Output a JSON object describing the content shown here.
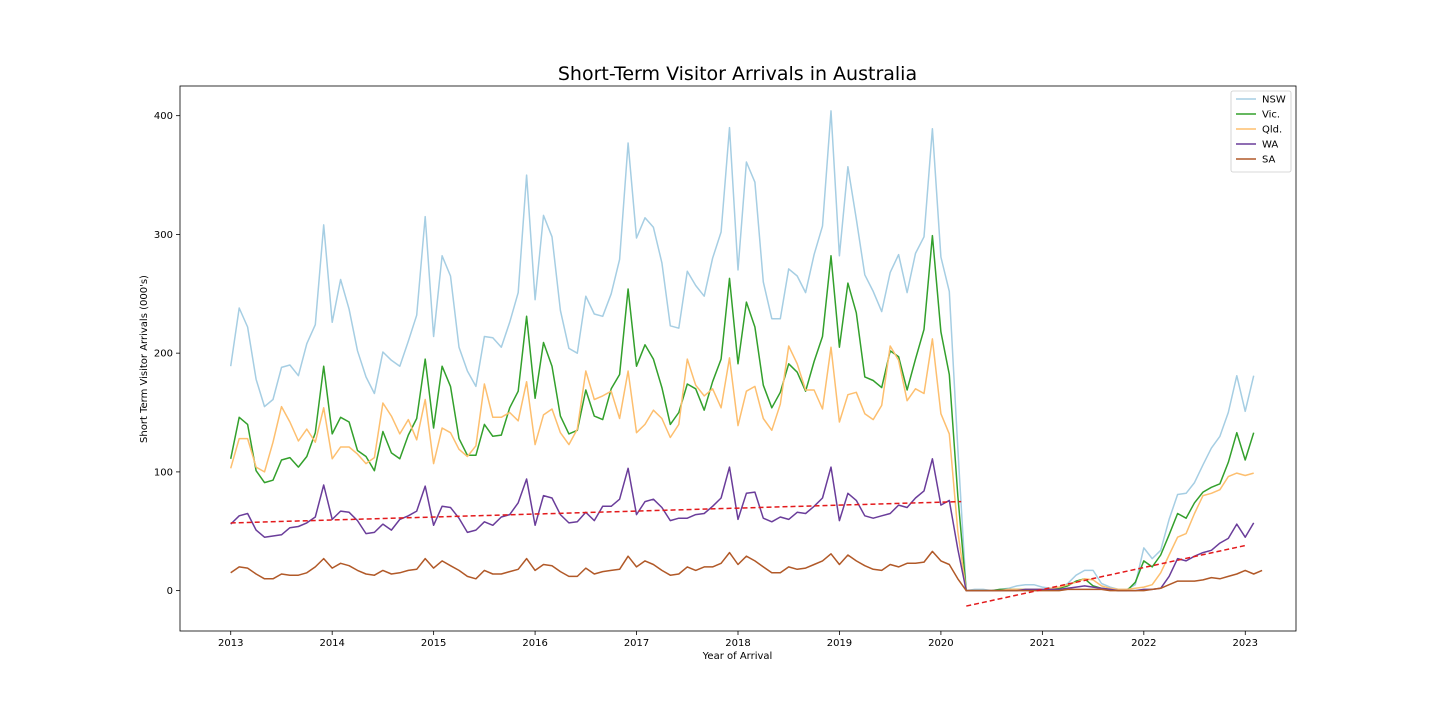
{
  "chart_data": {
    "type": "line",
    "title": "Short-Term Visitor Arrivals in Australia",
    "xlabel": "Year of Arrival",
    "ylabel": "Short Term Visitor Arrivals (000's)",
    "xlim": [
      2012.5,
      2023.5
    ],
    "ylim": [
      -34,
      425
    ],
    "x_ticks": [
      2013,
      2014,
      2015,
      2016,
      2017,
      2018,
      2019,
      2020,
      2021,
      2022,
      2023
    ],
    "y_ticks": [
      0,
      100,
      200,
      300,
      400
    ],
    "legend": "top-right",
    "x_start": 2013.0,
    "x_step": 0.08333,
    "series": [
      {
        "name": "NSW",
        "color": "#a6cee3",
        "values": [
          189,
          238,
          222,
          178,
          155,
          161,
          188,
          190,
          181,
          208,
          224,
          308,
          226,
          262,
          237,
          202,
          180,
          166,
          201,
          194,
          189,
          210,
          232,
          315,
          214,
          282,
          265,
          205,
          185,
          172,
          214,
          213,
          205,
          226,
          251,
          350,
          245,
          316,
          298,
          236,
          204,
          200,
          248,
          233,
          231,
          250,
          279,
          377,
          297,
          314,
          306,
          276,
          223,
          221,
          269,
          257,
          248,
          280,
          302,
          390,
          270,
          361,
          344,
          260,
          229,
          229,
          271,
          265,
          251,
          283,
          307,
          404,
          282,
          357,
          313,
          266,
          252,
          235,
          268,
          283,
          251,
          284,
          298,
          389,
          281,
          252,
          120,
          0,
          1,
          1,
          0,
          1,
          2,
          4,
          5,
          5,
          3,
          2,
          2,
          6,
          13,
          17,
          17,
          6,
          3,
          1,
          1,
          5,
          36,
          27,
          34,
          60,
          81,
          82,
          91,
          106,
          120,
          130,
          150,
          181,
          151,
          181
        ]
      },
      {
        "name": "Vic.",
        "color": "#33a02c",
        "values": [
          111,
          146,
          140,
          101,
          91,
          93,
          110,
          112,
          104,
          113,
          133,
          189,
          132,
          146,
          142,
          118,
          113,
          101,
          134,
          116,
          111,
          131,
          145,
          195,
          137,
          189,
          172,
          128,
          114,
          114,
          140,
          130,
          131,
          154,
          168,
          231,
          162,
          209,
          189,
          147,
          132,
          135,
          169,
          147,
          144,
          170,
          182,
          254,
          189,
          207,
          195,
          171,
          140,
          150,
          174,
          170,
          152,
          176,
          195,
          263,
          191,
          243,
          222,
          173,
          154,
          167,
          191,
          184,
          168,
          193,
          214,
          282,
          205,
          259,
          234,
          180,
          177,
          171,
          202,
          197,
          169,
          195,
          220,
          299,
          218,
          182,
          80,
          0,
          0,
          0,
          0,
          1,
          1,
          1,
          1,
          1,
          1,
          1,
          2,
          4,
          8,
          10,
          4,
          2,
          1,
          0,
          0,
          7,
          25,
          20,
          30,
          47,
          65,
          61,
          74,
          83,
          87,
          90,
          108,
          133,
          110,
          133
        ]
      },
      {
        "name": "Qld.",
        "color": "#fdbf6f",
        "values": [
          103,
          128,
          128,
          104,
          100,
          125,
          155,
          142,
          126,
          136,
          125,
          154,
          111,
          121,
          121,
          115,
          107,
          112,
          158,
          147,
          132,
          144,
          127,
          161,
          107,
          137,
          133,
          119,
          113,
          122,
          174,
          146,
          146,
          150,
          143,
          176,
          123,
          148,
          153,
          133,
          123,
          136,
          185,
          161,
          164,
          168,
          145,
          185,
          133,
          140,
          152,
          145,
          129,
          140,
          195,
          173,
          164,
          170,
          154,
          196,
          139,
          168,
          172,
          145,
          135,
          157,
          206,
          191,
          169,
          169,
          153,
          205,
          142,
          165,
          167,
          149,
          144,
          156,
          206,
          194,
          160,
          170,
          166,
          212,
          149,
          132,
          50,
          0,
          0,
          0,
          0,
          0,
          1,
          1,
          1,
          1,
          1,
          2,
          3,
          5,
          7,
          10,
          9,
          4,
          2,
          1,
          1,
          2,
          3,
          5,
          15,
          30,
          45,
          48,
          65,
          80,
          82,
          85,
          96,
          99,
          97,
          99
        ]
      },
      {
        "name": "WA",
        "color": "#6a3d9a",
        "values": [
          56,
          63,
          65,
          51,
          45,
          46,
          47,
          53,
          54,
          57,
          62,
          89,
          60,
          67,
          66,
          59,
          48,
          49,
          56,
          51,
          60,
          63,
          67,
          88,
          55,
          71,
          70,
          61,
          49,
          51,
          58,
          55,
          62,
          64,
          74,
          94,
          55,
          80,
          78,
          64,
          57,
          58,
          66,
          59,
          71,
          71,
          77,
          103,
          64,
          75,
          77,
          70,
          59,
          61,
          61,
          64,
          65,
          71,
          78,
          104,
          60,
          82,
          83,
          61,
          58,
          62,
          60,
          66,
          65,
          71,
          78,
          104,
          59,
          82,
          76,
          63,
          61,
          63,
          65,
          72,
          70,
          78,
          84,
          111,
          72,
          76,
          35,
          0,
          0,
          0,
          0,
          0,
          0,
          0,
          1,
          1,
          1,
          1,
          1,
          2,
          3,
          4,
          3,
          2,
          1,
          0,
          0,
          0,
          1,
          1,
          2,
          12,
          27,
          25,
          29,
          32,
          34,
          40,
          44,
          56,
          45,
          57
        ]
      },
      {
        "name": "SA",
        "color": "#b15928",
        "values": [
          15,
          20,
          19,
          14,
          10,
          10,
          14,
          13,
          13,
          15,
          20,
          27,
          19,
          23,
          21,
          17,
          14,
          13,
          17,
          14,
          15,
          17,
          18,
          27,
          19,
          25,
          21,
          17,
          12,
          10,
          17,
          14,
          14,
          16,
          18,
          27,
          17,
          22,
          21,
          16,
          12,
          12,
          19,
          14,
          16,
          17,
          18,
          29,
          20,
          25,
          22,
          17,
          13,
          14,
          20,
          17,
          20,
          20,
          23,
          32,
          22,
          29,
          25,
          20,
          15,
          15,
          20,
          18,
          19,
          22,
          25,
          31,
          22,
          30,
          25,
          21,
          18,
          17,
          22,
          20,
          23,
          23,
          24,
          33,
          25,
          22,
          10,
          0,
          0,
          0,
          0,
          0,
          0,
          0,
          0,
          0,
          0,
          0,
          0,
          1,
          1,
          1,
          1,
          1,
          0,
          0,
          0,
          0,
          0,
          1,
          2,
          5,
          8,
          8,
          8,
          9,
          11,
          10,
          12,
          14,
          17,
          14,
          17
        ]
      }
    ],
    "trend_lines": [
      {
        "color": "#e31a1c",
        "points": [
          [
            2013.0,
            57
          ],
          [
            2020.2,
            75
          ]
        ]
      },
      {
        "color": "#e31a1c",
        "points": [
          [
            2020.25,
            -13
          ],
          [
            2023.0,
            38
          ]
        ]
      }
    ]
  }
}
